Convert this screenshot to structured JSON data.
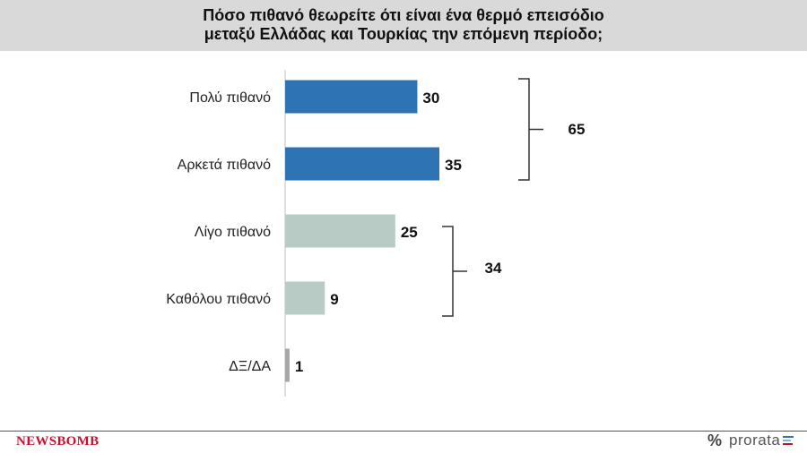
{
  "header": {
    "title_line1": "Πόσο πιθανό θεωρείτε ότι είναι ένα θερμό επεισόδιο",
    "title_line2": "μεταξύ Ελλάδας και Τουρκίας την επόμενη περίοδο;"
  },
  "chart_data": {
    "type": "bar",
    "orientation": "horizontal",
    "title": "Πόσο πιθανό θεωρείτε ότι είναι ένα θερμό επεισόδιο μεταξύ Ελλάδας και Τουρκίας την επόμενη περίοδο;",
    "categories": [
      "Πολύ πιθανό",
      "Αρκετά πιθανό",
      "Λίγο πιθανό",
      "Καθόλου πιθανό",
      "ΔΞ/ΔΑ"
    ],
    "values": [
      30,
      35,
      25,
      9,
      1
    ],
    "data_labels": [
      "30",
      "35",
      "25",
      "9",
      "1"
    ],
    "bar_colors": [
      "#2e74b5",
      "#2e74b5",
      "#b8cbc4",
      "#b8cbc4",
      "#a6a6a6"
    ],
    "groups": [
      {
        "label": "65",
        "value": 65,
        "categories": [
          "Πολύ πιθανό",
          "Αρκετά πιθανό"
        ]
      },
      {
        "label": "34",
        "value": 34,
        "categories": [
          "Λίγο πιθανό",
          "Καθόλου πιθανό"
        ]
      }
    ],
    "xlim": [
      0,
      100
    ],
    "grid": false,
    "legend": "none"
  },
  "footer": {
    "newsbomb_logo": "NEWSBOMB",
    "prorata_symbol": "%",
    "prorata_logo": "prorata",
    "brand_colors": {
      "newsbomb": "#c8102e",
      "prorata_bars": [
        "#2e74b5",
        "#8ab4d8",
        "#c8102e"
      ]
    }
  }
}
